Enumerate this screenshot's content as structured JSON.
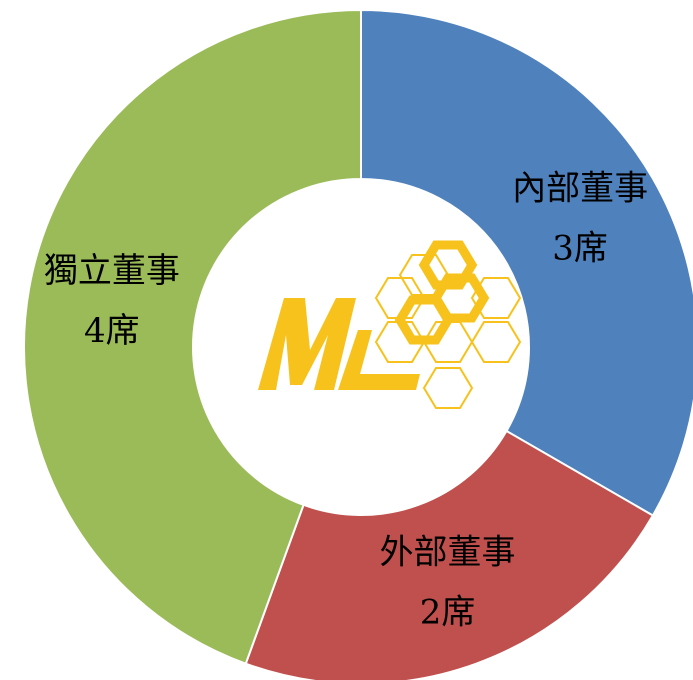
{
  "chart_data": {
    "type": "donut",
    "categories": [
      "內部董事",
      "外部董事",
      "獨立董事"
    ],
    "values": [
      3,
      2,
      4
    ],
    "value_labels": [
      "3席",
      "2席",
      "4席"
    ],
    "colors": [
      "#4f81bd",
      "#c0504d",
      "#9bbb59"
    ]
  }
}
